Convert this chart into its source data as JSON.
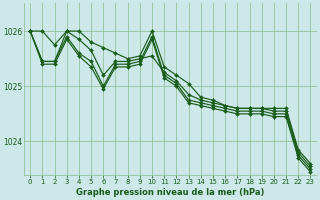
{
  "bg_color": "#cce8e8",
  "plot_bg_color": "#cce8e8",
  "grid_color": "#88bb88",
  "line_color": "#1a5c1a",
  "xlabel": "Graphe pression niveau de la mer (hPa)",
  "xlim": [
    -0.5,
    23.5
  ],
  "ylim": [
    1023.4,
    1026.5
  ],
  "yticks": [
    1024,
    1025,
    1026
  ],
  "xticks": [
    0,
    1,
    2,
    3,
    4,
    5,
    6,
    7,
    8,
    9,
    10,
    11,
    12,
    13,
    14,
    15,
    16,
    17,
    18,
    19,
    20,
    21,
    22,
    23
  ],
  "series": [
    [
      1026.0,
      1026.0,
      1025.75,
      1026.0,
      1026.0,
      1025.8,
      1025.7,
      1025.6,
      1025.5,
      1025.55,
      1026.0,
      1025.35,
      1025.2,
      1025.05,
      1024.8,
      1024.75,
      1024.65,
      1024.6,
      1024.6,
      1024.6,
      1024.6,
      1024.6,
      1023.85,
      1023.6
    ],
    [
      1026.0,
      1025.45,
      1025.45,
      1026.0,
      1025.85,
      1025.65,
      1025.2,
      1025.45,
      1025.45,
      1025.5,
      1025.55,
      1025.25,
      1025.1,
      1024.85,
      1024.75,
      1024.7,
      1024.65,
      1024.6,
      1024.6,
      1024.6,
      1024.55,
      1024.55,
      1023.8,
      1023.55
    ],
    [
      1026.0,
      1025.45,
      1025.45,
      1025.9,
      1025.6,
      1025.45,
      1025.0,
      1025.4,
      1025.4,
      1025.45,
      1025.9,
      1025.2,
      1025.05,
      1024.75,
      1024.7,
      1024.65,
      1024.6,
      1024.55,
      1024.55,
      1024.55,
      1024.5,
      1024.5,
      1023.75,
      1023.5
    ],
    [
      1026.0,
      1025.4,
      1025.4,
      1025.85,
      1025.55,
      1025.35,
      1024.95,
      1025.35,
      1025.35,
      1025.4,
      1025.85,
      1025.15,
      1025.0,
      1024.7,
      1024.65,
      1024.6,
      1024.55,
      1024.5,
      1024.5,
      1024.5,
      1024.45,
      1024.45,
      1023.7,
      1023.45
    ]
  ]
}
